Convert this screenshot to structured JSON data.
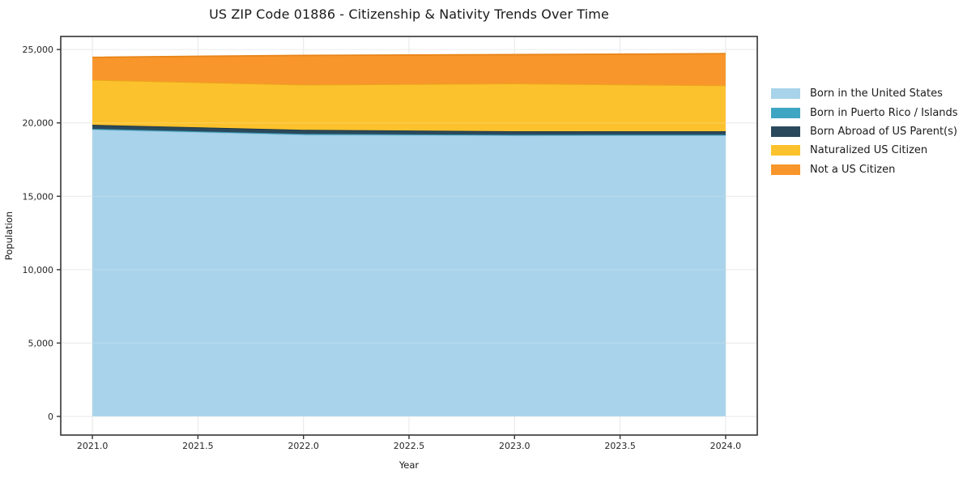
{
  "chart_data": {
    "type": "area",
    "stacked": true,
    "title": "US ZIP Code 01886 - Citizenship & Nativity Trends Over Time",
    "xlabel": "Year",
    "ylabel": "Population",
    "x": [
      2021,
      2022,
      2023,
      2024
    ],
    "series": [
      {
        "name": "Born in the United States",
        "color": "#a8d3ea",
        "edge_color": "#8fc0dd",
        "values": [
          19550,
          19200,
          19150,
          19150
        ]
      },
      {
        "name": "Born in Puerto Rico / Islands",
        "color": "#3ea6c2",
        "edge_color": "#3593ad",
        "values": [
          50,
          50,
          40,
          50
        ]
      },
      {
        "name": "Born Abroad of US Parent(s)",
        "color": "#2a495b",
        "edge_color": "#1e3644",
        "values": [
          270,
          280,
          240,
          230
        ]
      },
      {
        "name": "Naturalized US Citizen",
        "color": "#fcc22d",
        "edge_color": "#eaa91c",
        "values": [
          3060,
          3070,
          3250,
          3120
        ]
      },
      {
        "name": "Not a US Citizen",
        "color": "#f8962b",
        "edge_color": "#e88418",
        "values": [
          1540,
          2000,
          1970,
          2170
        ]
      }
    ],
    "xlim": [
      2020.85,
      2024.15
    ],
    "ylim": [
      -1270,
      25890
    ],
    "xticks": [
      2021.0,
      2021.5,
      2022.0,
      2022.5,
      2023.0,
      2023.5,
      2024.0
    ],
    "xtick_labels": [
      "2021.0",
      "2021.5",
      "2022.0",
      "2022.5",
      "2023.0",
      "2023.5",
      "2024.0"
    ],
    "yticks": [
      0,
      5000,
      10000,
      15000,
      20000,
      25000
    ],
    "ytick_labels": [
      "0",
      "5,000",
      "10,000",
      "15,000",
      "20,000",
      "25,000"
    ],
    "grid": true,
    "legend_position": "right"
  },
  "style": {
    "grid_color": "#e7e7e7",
    "spine_color": "#343434",
    "tick_label_color": "#262626",
    "axis_label_color": "#1a1a1a",
    "background": "#ffffff"
  }
}
